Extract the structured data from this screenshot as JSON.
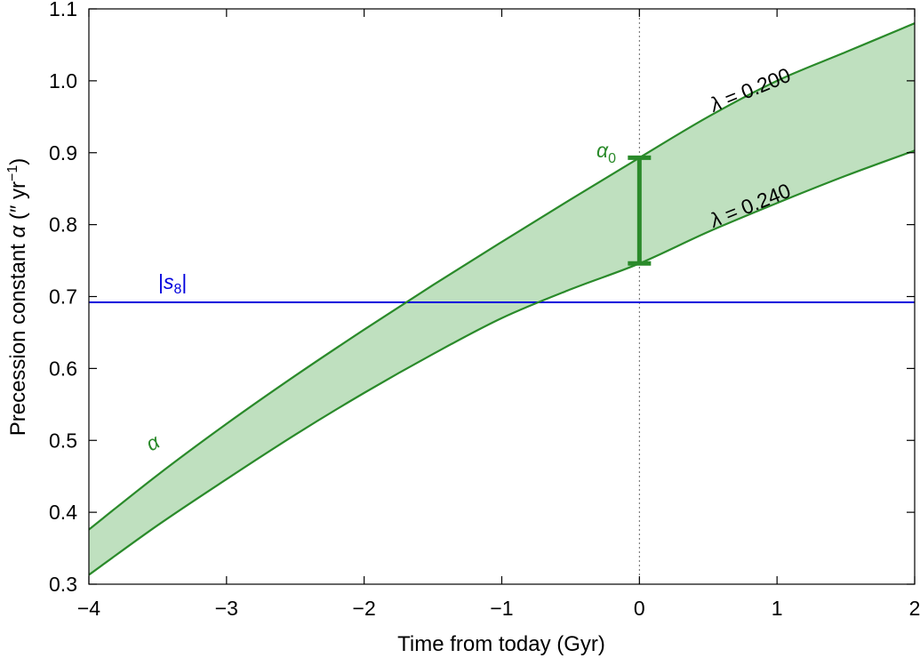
{
  "chart_data": {
    "type": "area",
    "xlabel": "Time from today (Gyr)",
    "ylabel": {
      "prefix": "Precession constant  ",
      "symbol": "α",
      "unit_open": " (″ yr",
      "unit_exp": "−1",
      "unit_close": ")"
    },
    "xlim": [
      -4,
      2
    ],
    "ylim": [
      0.3,
      1.1
    ],
    "x_ticks": [
      -4,
      -3,
      -2,
      -1,
      0,
      1,
      2
    ],
    "x_tick_labels": [
      "−4",
      "−3",
      "−2",
      "−1",
      "0",
      "1",
      "2"
    ],
    "y_ticks": [
      0.3,
      0.4,
      0.5,
      0.6,
      0.7,
      0.8,
      0.9,
      1.0,
      1.1
    ],
    "y_tick_labels": [
      "0.3",
      "0.4",
      "0.5",
      "0.6",
      "0.7",
      "0.8",
      "0.9",
      "1.0",
      "1.1"
    ],
    "grid": false,
    "series": [
      {
        "label_symbol": "λ",
        "label_text": " = 0.200",
        "color": "#2a8a2a",
        "x": [
          -4,
          -3.5,
          -3,
          -2.5,
          -2,
          -1.5,
          -1,
          -0.5,
          0,
          0.5,
          1,
          1.5,
          2
        ],
        "y": [
          0.376,
          0.452,
          0.523,
          0.59,
          0.654,
          0.716,
          0.776,
          0.835,
          0.893,
          0.95,
          1.0,
          1.04,
          1.08
        ]
      },
      {
        "label_symbol": "λ",
        "label_text": " = 0.240",
        "color": "#2a8a2a",
        "x": [
          -4,
          -3.5,
          -3,
          -2.5,
          -2,
          -1.5,
          -1,
          -0.5,
          0,
          0.5,
          1,
          1.5,
          2
        ],
        "y": [
          0.313,
          0.382,
          0.446,
          0.508,
          0.566,
          0.62,
          0.67,
          0.71,
          0.746,
          0.79,
          0.83,
          0.868,
          0.903
        ]
      }
    ],
    "band_color": "#bfe0bf",
    "band_label": "α",
    "s8": {
      "label_open": "|",
      "label_symbol": "s",
      "label_sub": "8",
      "label_close": "|",
      "value": 0.692,
      "color": "#0000dd"
    },
    "today_line": {
      "x": 0,
      "style": "dotted"
    },
    "alpha0": {
      "symbol": "α",
      "sub": "0",
      "x": 0,
      "low": 0.746,
      "high": 0.893,
      "color": "#2a8a2a"
    }
  }
}
